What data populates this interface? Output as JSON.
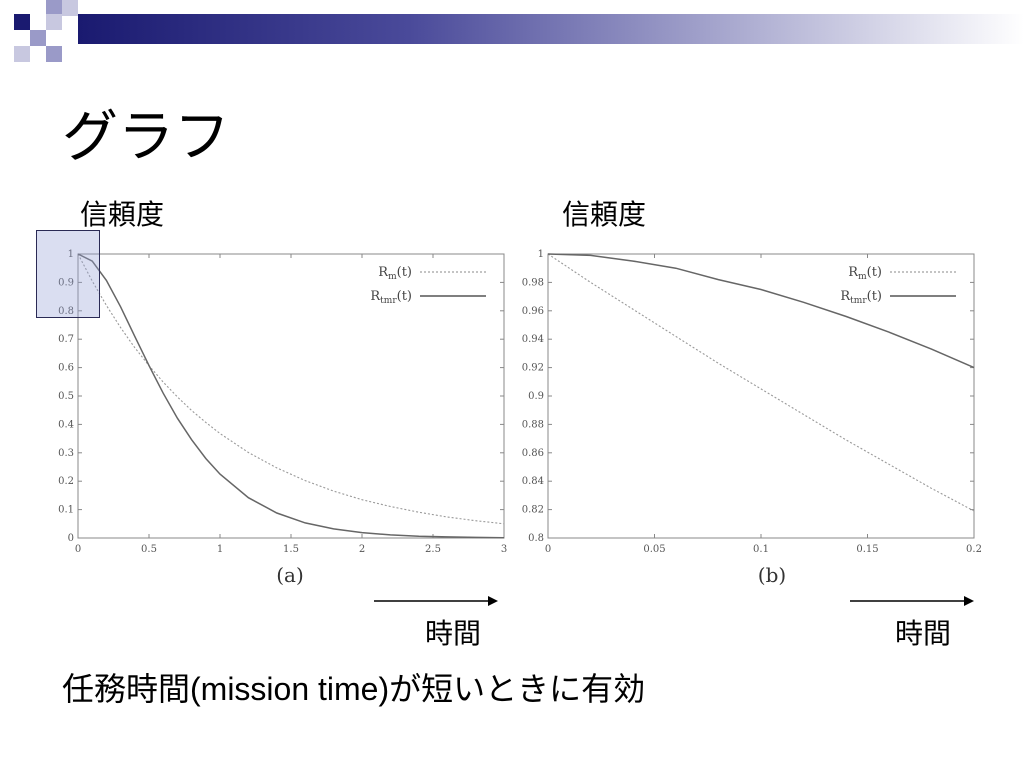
{
  "slide": {
    "title": "グラフ",
    "bullet": "任務時間(mission time)が短いときに有効"
  },
  "theme": {
    "navy": "#1a1a70",
    "lavender": "#9a9ac8",
    "curve_color": "#666666"
  },
  "panels": [
    {
      "ylabel": "信頼度",
      "caption": "(a)",
      "time_label": "時間",
      "legend": [
        {
          "label": "R",
          "sub": "m",
          "suffix": "(t)",
          "style": "dotted"
        },
        {
          "label": "R",
          "sub": "tmr",
          "suffix": "(t)",
          "style": "solid"
        }
      ]
    },
    {
      "ylabel": "信頼度",
      "caption": "(b)",
      "time_label": "時間",
      "legend": [
        {
          "label": "R",
          "sub": "m",
          "suffix": "(t)",
          "style": "dotted"
        },
        {
          "label": "R",
          "sub": "tmr",
          "suffix": "(t)",
          "style": "solid"
        }
      ]
    }
  ],
  "chart_data": [
    {
      "type": "line",
      "xlim": [
        0,
        3
      ],
      "ylim": [
        0,
        1
      ],
      "xticks": [
        "0",
        "0.5",
        "1",
        "1.5",
        "2",
        "2.5",
        "3"
      ],
      "xtick_values": [
        0,
        0.5,
        1,
        1.5,
        2,
        2.5,
        3
      ],
      "yticks": [
        "0",
        "0.1",
        "0.2",
        "0.3",
        "0.4",
        "0.5",
        "0.6",
        "0.7",
        "0.8",
        "0.9",
        "1"
      ],
      "ytick_values": [
        0,
        0.1,
        0.2,
        0.3,
        0.4,
        0.5,
        0.6,
        0.7,
        0.8,
        0.9,
        1
      ],
      "grid": false,
      "legend_position": "top-right",
      "x": [
        0,
        0.1,
        0.2,
        0.3,
        0.4,
        0.5,
        0.6,
        0.7,
        0.8,
        0.9,
        1.0,
        1.2,
        1.4,
        1.6,
        1.8,
        2.0,
        2.2,
        2.4,
        2.6,
        2.8,
        3.0
      ],
      "series": [
        {
          "style": "dotted",
          "values": [
            1.0,
            0.905,
            0.819,
            0.741,
            0.67,
            0.607,
            0.549,
            0.497,
            0.449,
            0.407,
            0.368,
            0.301,
            0.247,
            0.202,
            0.165,
            0.135,
            0.111,
            0.091,
            0.074,
            0.061,
            0.05
          ]
        },
        {
          "style": "solid",
          "values": [
            1.0,
            0.975,
            0.907,
            0.814,
            0.71,
            0.607,
            0.51,
            0.422,
            0.346,
            0.28,
            0.225,
            0.142,
            0.088,
            0.053,
            0.032,
            0.019,
            0.011,
            0.006,
            0.004,
            0.002,
            0.001
          ]
        }
      ]
    },
    {
      "type": "line",
      "xlim": [
        0,
        0.2
      ],
      "ylim": [
        0.8,
        1
      ],
      "xticks": [
        "0",
        "0.05",
        "0.1",
        "0.15",
        "0.2"
      ],
      "xtick_values": [
        0,
        0.05,
        0.1,
        0.15,
        0.2
      ],
      "yticks": [
        "0.8",
        "0.82",
        "0.84",
        "0.86",
        "0.88",
        "0.9",
        "0.92",
        "0.94",
        "0.96",
        "0.98",
        "1"
      ],
      "ytick_values": [
        0.8,
        0.82,
        0.84,
        0.86,
        0.88,
        0.9,
        0.92,
        0.94,
        0.96,
        0.98,
        1
      ],
      "grid": false,
      "legend_position": "top-right",
      "x": [
        0,
        0.02,
        0.04,
        0.06,
        0.08,
        0.1,
        0.12,
        0.14,
        0.16,
        0.18,
        0.2
      ],
      "series": [
        {
          "style": "dotted",
          "values": [
            1.0,
            0.98,
            0.961,
            0.942,
            0.923,
            0.905,
            0.887,
            0.869,
            0.852,
            0.835,
            0.819
          ]
        },
        {
          "style": "solid",
          "values": [
            1.0,
            0.999,
            0.995,
            0.99,
            0.982,
            0.975,
            0.966,
            0.956,
            0.945,
            0.933,
            0.92
          ]
        }
      ]
    }
  ]
}
